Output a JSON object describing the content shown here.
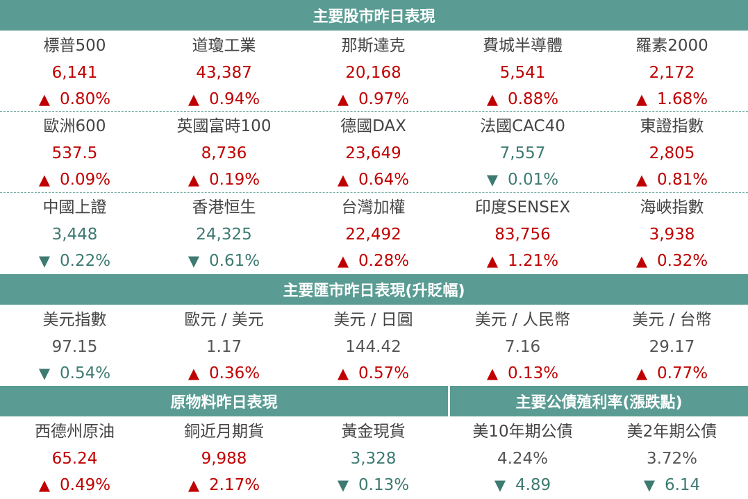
{
  "colors": {
    "header_bg": "#5a9c93",
    "up": "#c00000",
    "down": "#3d7a72",
    "flat": "#555555"
  },
  "arrows": {
    "up": "▲",
    "down": "▼"
  },
  "sections": {
    "stocks": "主要股市昨日表現",
    "fx": "主要匯市昨日表現(升貶幅)",
    "commodities": "原物料昨日表現",
    "bonds": "主要公債殖利率(漲跌點)"
  },
  "stocks": [
    {
      "name": "標普500",
      "value": "6,141",
      "change": "0.80%",
      "dir": "up"
    },
    {
      "name": "道瓊工業",
      "value": "43,387",
      "change": "0.94%",
      "dir": "up"
    },
    {
      "name": "那斯達克",
      "value": "20,168",
      "change": "0.97%",
      "dir": "up"
    },
    {
      "name": "費城半導體",
      "value": "5,541",
      "change": "0.88%",
      "dir": "up"
    },
    {
      "name": "羅素2000",
      "value": "2,172",
      "change": "1.68%",
      "dir": "up"
    },
    {
      "name": "歐洲600",
      "value": "537.5",
      "change": "0.09%",
      "dir": "up"
    },
    {
      "name": "英國富時100",
      "value": "8,736",
      "change": "0.19%",
      "dir": "up"
    },
    {
      "name": "德國DAX",
      "value": "23,649",
      "change": "0.64%",
      "dir": "up"
    },
    {
      "name": "法國CAC40",
      "value": "7,557",
      "change": "0.01%",
      "dir": "down"
    },
    {
      "name": "東證指數",
      "value": "2,805",
      "change": "0.81%",
      "dir": "up"
    },
    {
      "name": "中國上證",
      "value": "3,448",
      "change": "0.22%",
      "dir": "down"
    },
    {
      "name": "香港恒生",
      "value": "24,325",
      "change": "0.61%",
      "dir": "down"
    },
    {
      "name": "台灣加權",
      "value": "22,492",
      "change": "0.28%",
      "dir": "up"
    },
    {
      "name": "印度SENSEX",
      "value": "83,756",
      "change": "1.21%",
      "dir": "up"
    },
    {
      "name": "海峽指數",
      "value": "3,938",
      "change": "0.32%",
      "dir": "up"
    }
  ],
  "fx": [
    {
      "name": "美元指數",
      "value": "97.15",
      "change": "0.54%",
      "dir": "down"
    },
    {
      "name": "歐元 / 美元",
      "value": "1.17",
      "change": "0.36%",
      "dir": "up"
    },
    {
      "name": "美元 / 日圓",
      "value": "144.42",
      "change": "0.57%",
      "dir": "up"
    },
    {
      "name": "美元 / 人民幣",
      "value": "7.16",
      "change": "0.13%",
      "dir": "up"
    },
    {
      "name": "美元 / 台幣",
      "value": "29.17",
      "change": "0.77%",
      "dir": "up"
    }
  ],
  "commodities": [
    {
      "name": "西德州原油",
      "value": "65.24",
      "change": "0.49%",
      "dir": "up"
    },
    {
      "name": "銅近月期貨",
      "value": "9,988",
      "change": "2.17%",
      "dir": "up"
    },
    {
      "name": "黃金現貨",
      "value": "3,328",
      "change": "0.13%",
      "dir": "down"
    }
  ],
  "bonds": [
    {
      "name": "美10年期公債",
      "value": "4.24%",
      "change": "4.89",
      "dir": "down"
    },
    {
      "name": "美2年期公債",
      "value": "3.72%",
      "change": "6.14",
      "dir": "down"
    }
  ]
}
